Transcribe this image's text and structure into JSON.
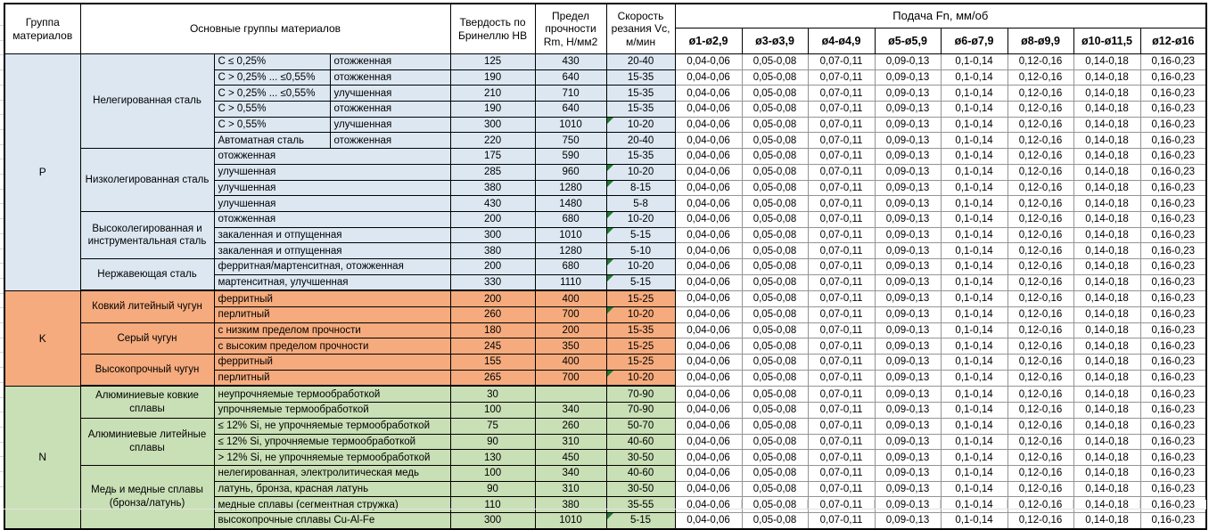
{
  "table": {
    "headers": {
      "group": "Группа материалов",
      "material_groups": "Основные группы материалов",
      "hardness": "Твердость по Бринеллю HB",
      "strength": "Предел прочности Rm, Н/мм2",
      "cutting_speed": "Скорость резания Vc, м/мин",
      "feed": "Подача Fn, мм/об",
      "diameters": [
        "ø1-ø2,9",
        "ø3-ø3,9",
        "ø4-ø4,9",
        "ø5-ø5,9",
        "ø6-ø7,9",
        "ø8-ø9,9",
        "ø10-ø11,5",
        "ø12-ø16"
      ]
    },
    "feed_values": [
      "0,04-0,06",
      "0,05-0,08",
      "0,07-0,11",
      "0,09-0,13",
      "0,1-0,14",
      "0,12-0,16",
      "0,14-0,18",
      "0,16-0,23"
    ],
    "colors": {
      "group_P": "#dce7f2",
      "group_K": "#f5ab7d",
      "group_N": "#c9dfb6",
      "note_triangle": "#1e7d33",
      "feed_cell_border": "#949494",
      "table_border": "#000000"
    },
    "groups": [
      {
        "letter": "P",
        "color_key": "group_P",
        "blocks": [
          {
            "name": "Нелегированная сталь",
            "rows": [
              {
                "cells": [
                  "C ≤ 0,25%",
                  "отожженная"
                ],
                "hb": "125",
                "rm": "430",
                "vc": "20-40",
                "note": false
              },
              {
                "cells": [
                  "C > 0,25% ... ≤0,55%",
                  "отожженная"
                ],
                "hb": "190",
                "rm": "640",
                "vc": "15-35",
                "note": false
              },
              {
                "cells": [
                  "C > 0,25% ... ≤0,55%",
                  "улучшенная"
                ],
                "hb": "210",
                "rm": "710",
                "vc": "15-35",
                "note": false
              },
              {
                "cells": [
                  "C > 0,55%",
                  "отожженная"
                ],
                "hb": "190",
                "rm": "640",
                "vc": "15-35",
                "note": false
              },
              {
                "cells": [
                  "C > 0,55%",
                  "улучшенная"
                ],
                "hb": "300",
                "rm": "1010",
                "vc": "10-20",
                "note": true
              },
              {
                "cells": [
                  "Автоматная сталь",
                  "отожженная"
                ],
                "hb": "220",
                "rm": "750",
                "vc": "20-40",
                "note": false
              }
            ]
          },
          {
            "name": "Низколегированная сталь",
            "rows": [
              {
                "cells": [
                  "отожженная"
                ],
                "hb": "175",
                "rm": "590",
                "vc": "15-35",
                "note": false
              },
              {
                "cells": [
                  "улучшенная"
                ],
                "hb": "285",
                "rm": "960",
                "vc": "10-20",
                "note": true
              },
              {
                "cells": [
                  "улучшенная"
                ],
                "hb": "380",
                "rm": "1280",
                "vc": "8-15",
                "note": true
              },
              {
                "cells": [
                  "улучшенная"
                ],
                "hb": "430",
                "rm": "1480",
                "vc": "5-8",
                "note": false
              }
            ]
          },
          {
            "name": "Высоколегированная и инструментальная сталь",
            "rows": [
              {
                "cells": [
                  "отожженная"
                ],
                "hb": "200",
                "rm": "680",
                "vc": "10-20",
                "note": true
              },
              {
                "cells": [
                  "закаленная и отпущенная"
                ],
                "hb": "300",
                "rm": "1010",
                "vc": "5-15",
                "note": true
              },
              {
                "cells": [
                  "закаленная и отпущенная"
                ],
                "hb": "380",
                "rm": "1280",
                "vc": "5-10",
                "note": false
              }
            ]
          },
          {
            "name": "Нержавеющая сталь",
            "rows": [
              {
                "cells": [
                  "ферритная/мартенситная, отожженная"
                ],
                "hb": "200",
                "rm": "680",
                "vc": "10-20",
                "note": true
              },
              {
                "cells": [
                  "мартенситная, улучшенная"
                ],
                "hb": "330",
                "rm": "1110",
                "vc": "5-15",
                "note": true
              }
            ]
          }
        ]
      },
      {
        "letter": "K",
        "color_key": "group_K",
        "blocks": [
          {
            "name": "Ковкий литейный чугун",
            "rows": [
              {
                "cells": [
                  "ферритный"
                ],
                "hb": "200",
                "rm": "400",
                "vc": "15-25",
                "note": false
              },
              {
                "cells": [
                  "перлитный"
                ],
                "hb": "260",
                "rm": "700",
                "vc": "10-20",
                "note": true
              }
            ]
          },
          {
            "name": "Серый чугун",
            "rows": [
              {
                "cells": [
                  "с низким пределом прочности"
                ],
                "hb": "180",
                "rm": "200",
                "vc": "15-35",
                "note": false
              },
              {
                "cells": [
                  "с высоким пределом прочности"
                ],
                "hb": "245",
                "rm": "350",
                "vc": "15-25",
                "note": false
              }
            ]
          },
          {
            "name": "Высокопрочный чугун",
            "rows": [
              {
                "cells": [
                  "ферритный"
                ],
                "hb": "155",
                "rm": "400",
                "vc": "15-25",
                "note": false
              },
              {
                "cells": [
                  "перлитный"
                ],
                "hb": "265",
                "rm": "700",
                "vc": "10-20",
                "note": true
              }
            ]
          }
        ]
      },
      {
        "letter": "N",
        "color_key": "group_N",
        "blocks": [
          {
            "name": "Алюминиевые ковкие сплавы",
            "rows": [
              {
                "cells": [
                  "неупрочняемые термообработкой"
                ],
                "hb": "30",
                "rm": "",
                "vc": "70-90",
                "note": false
              },
              {
                "cells": [
                  "упрочняемые термообработкой"
                ],
                "hb": "100",
                "rm": "340",
                "vc": "70-90",
                "note": false
              }
            ]
          },
          {
            "name": "Алюминиевые литейные сплавы",
            "rows": [
              {
                "cells": [
                  "≤ 12% Si, не упрочняемые термообработкой"
                ],
                "hb": "75",
                "rm": "260",
                "vc": "50-70",
                "note": false
              },
              {
                "cells": [
                  "≤ 12% Si, упрочняемые термообработкой"
                ],
                "hb": "90",
                "rm": "310",
                "vc": "40-60",
                "note": false
              },
              {
                "cells": [
                  "> 12% Si, не упрочняемые термообработкой"
                ],
                "hb": "130",
                "rm": "450",
                "vc": "30-50",
                "note": false
              }
            ]
          },
          {
            "name": "Медь и медные сплавы (бронза/латунь)",
            "rows": [
              {
                "cells": [
                  "нелегированная, электролитическая медь"
                ],
                "hb": "100",
                "rm": "340",
                "vc": "40-60",
                "note": false
              },
              {
                "cells": [
                  "латунь, бронза, красная латунь"
                ],
                "hb": "90",
                "rm": "310",
                "vc": "30-50",
                "note": false
              },
              {
                "cells": [
                  "медные сплавы (сегментная стружка)"
                ],
                "hb": "110",
                "rm": "380",
                "vc": "35-55",
                "note": false
              },
              {
                "cells": [
                  "высокопрочные сплавы Cu-Al-Fe"
                ],
                "hb": "300",
                "rm": "1010",
                "vc": "5-15",
                "note": true
              }
            ]
          }
        ]
      }
    ]
  }
}
